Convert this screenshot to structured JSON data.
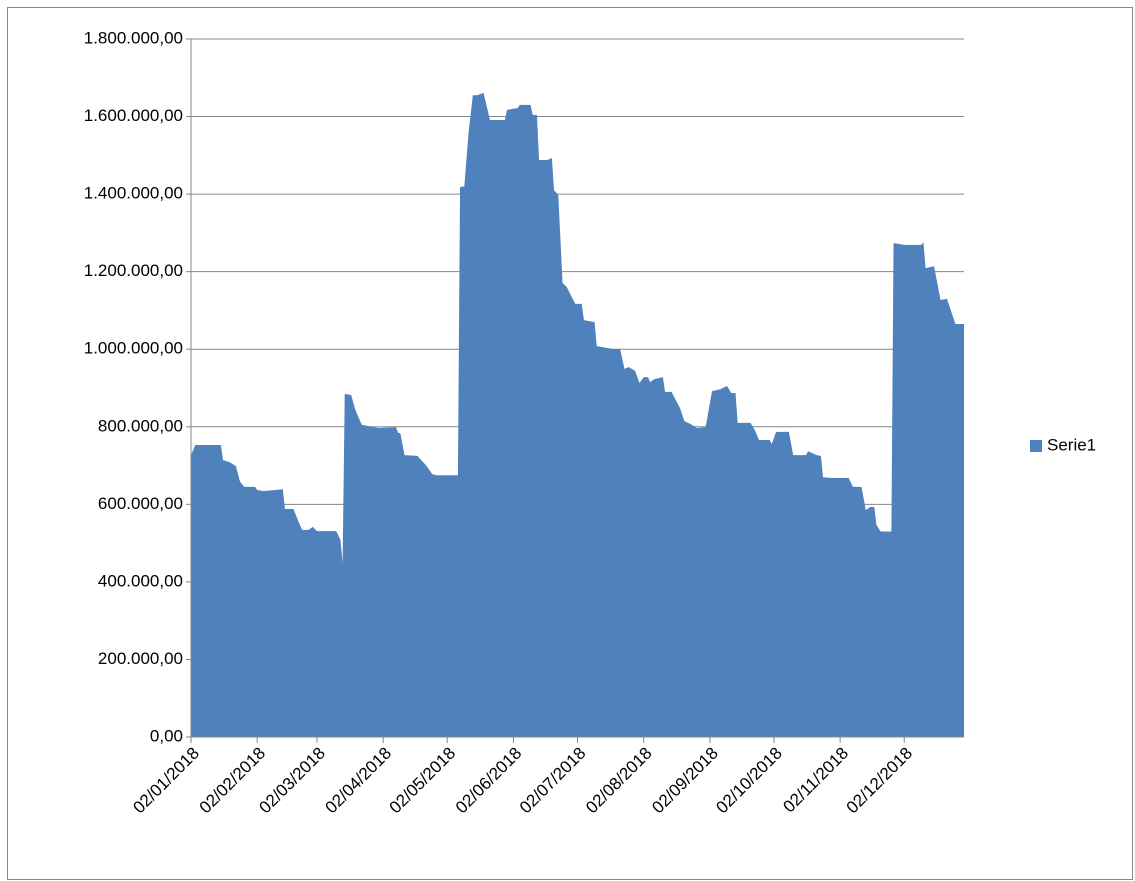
{
  "chart_data": {
    "type": "area",
    "x": [
      "02/01/2018",
      "04/01/2018",
      "16/01/2018",
      "17/01/2018",
      "20/01/2018",
      "23/01/2018",
      "25/01/2018",
      "27/01/2018",
      "01/02/2018",
      "02/02/2018",
      "05/02/2018",
      "14/02/2018",
      "15/02/2018",
      "19/02/2018",
      "21/02/2018",
      "23/02/2018",
      "26/02/2018",
      "28/02/2018",
      "02/03/2018",
      "11/03/2018",
      "13/03/2018",
      "14/03/2018",
      "15/03/2018",
      "18/03/2018",
      "20/03/2018",
      "23/03/2018",
      "31/03/2018",
      "08/04/2018",
      "09/04/2018",
      "10/04/2018",
      "12/04/2018",
      "18/04/2018",
      "22/04/2018",
      "25/04/2018",
      "27/04/2018",
      "07/05/2018",
      "08/05/2018",
      "10/05/2018",
      "12/05/2018",
      "14/05/2018",
      "16/05/2018",
      "19/05/2018",
      "22/05/2018",
      "29/05/2018",
      "30/05/2018",
      "04/06/2018",
      "05/06/2018",
      "10/06/2018",
      "11/06/2018",
      "13/06/2018",
      "14/06/2018",
      "18/06/2018",
      "20/06/2018",
      "21/06/2018",
      "23/06/2018",
      "25/06/2018",
      "27/06/2018",
      "30/06/2018",
      "01/07/2018",
      "04/07/2018",
      "05/07/2018",
      "10/07/2018",
      "11/07/2018",
      "16/07/2018",
      "19/07/2018",
      "22/07/2018",
      "24/07/2018",
      "26/07/2018",
      "29/07/2018",
      "31/07/2018",
      "02/08/2018",
      "04/08/2018",
      "05/08/2018",
      "07/08/2018",
      "11/08/2018",
      "12/08/2018",
      "15/08/2018",
      "19/08/2018",
      "21/08/2018",
      "24/08/2018",
      "27/08/2018",
      "31/08/2018",
      "03/09/2018",
      "07/09/2018",
      "10/09/2018",
      "12/09/2018",
      "14/09/2018",
      "15/09/2018",
      "21/09/2018",
      "23/09/2018",
      "25/09/2018",
      "30/09/2018",
      "01/10/2018",
      "03/10/2018",
      "09/10/2018",
      "11/10/2018",
      "17/10/2018",
      "18/10/2018",
      "22/10/2018",
      "24/10/2018",
      "25/10/2018",
      "29/10/2018",
      "02/11/2018",
      "06/11/2018",
      "08/11/2018",
      "12/11/2018",
      "14/11/2018",
      "16/11/2018",
      "18/11/2018",
      "19/11/2018",
      "21/11/2018",
      "26/11/2018",
      "27/11/2018",
      "02/12/2018",
      "10/12/2018",
      "11/12/2018",
      "12/12/2018",
      "16/12/2018",
      "19/12/2018",
      "22/12/2018",
      "26/12/2018",
      "30/12/2018"
    ],
    "series": [
      {
        "name": "Serie1",
        "color": "#4f81bd",
        "values": [
          727000,
          753000,
          753000,
          714000,
          709000,
          699000,
          658000,
          645000,
          645000,
          637000,
          634000,
          639000,
          588000,
          588000,
          560000,
          534000,
          534000,
          542000,
          531000,
          531000,
          508000,
          449000,
          885000,
          882000,
          843000,
          805000,
          797000,
          799000,
          784000,
          784000,
          727000,
          725000,
          701000,
          678000,
          675000,
          675000,
          1418000,
          1420000,
          1560000,
          1655000,
          1655000,
          1661000,
          1591000,
          1591000,
          1617000,
          1622000,
          1630000,
          1630000,
          1604000,
          1604000,
          1488000,
          1488000,
          1493000,
          1410000,
          1398000,
          1171000,
          1160000,
          1127000,
          1117000,
          1117000,
          1075000,
          1070000,
          1008000,
          1003000,
          1000000,
          1000000,
          949000,
          954000,
          944000,
          913000,
          928000,
          928000,
          915000,
          923000,
          928000,
          890000,
          890000,
          848000,
          815000,
          807000,
          797000,
          799000,
          892000,
          897000,
          905000,
          887000,
          887000,
          810000,
          810000,
          792000,
          766000,
          766000,
          756000,
          787000,
          787000,
          727000,
          727000,
          737000,
          727000,
          725000,
          670000,
          668000,
          668000,
          668000,
          645000,
          645000,
          585000,
          593000,
          593000,
          547000,
          530000,
          530000,
          1274000,
          1269000,
          1269000,
          1276000,
          1209000,
          1214000,
          1127000,
          1130000,
          1065000,
          1065000
        ]
      }
    ],
    "xlim": [
      "02/01/2018",
      "30/12/2018"
    ],
    "xticks": [
      "02/01/2018",
      "02/02/2018",
      "02/03/2018",
      "02/04/2018",
      "02/05/2018",
      "02/06/2018",
      "02/07/2018",
      "02/08/2018",
      "02/09/2018",
      "02/10/2018",
      "02/11/2018",
      "02/12/2018"
    ],
    "ylim": [
      0,
      1800000
    ],
    "yticks": [
      {
        "value": 0,
        "label": "0,00"
      },
      {
        "value": 200000,
        "label": "200.000,00"
      },
      {
        "value": 400000,
        "label": "400.000,00"
      },
      {
        "value": 600000,
        "label": "600.000,00"
      },
      {
        "value": 800000,
        "label": "800.000,00"
      },
      {
        "value": 1000000,
        "label": "1.000.000,00"
      },
      {
        "value": 1200000,
        "label": "1.200.000,00"
      },
      {
        "value": 1400000,
        "label": "1.400.000,00"
      },
      {
        "value": 1600000,
        "label": "1.600.000,00"
      },
      {
        "value": 1800000,
        "label": "1.800.000,00"
      }
    ],
    "grid": true,
    "legend": "right"
  }
}
